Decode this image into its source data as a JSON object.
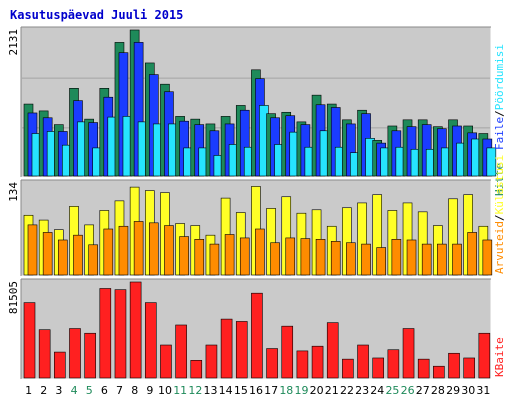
{
  "title": "Kasutuspäevad Juuli 2015",
  "colors": {
    "background": "#ffffff",
    "panel": "#cacaca",
    "title": "#0000cc",
    "grid": "#a3a3a3",
    "hits": "#1e8a5a",
    "files": "#1a3cff",
    "pages": "#26e4ff",
    "visits": "#ffff26",
    "sites": "#ff8c00",
    "kbytes": "#ff2020",
    "weekend_tick": "#1e8a5a",
    "tick": "#000000",
    "sep": "#000000"
  },
  "right_labels": {
    "hits": "Hitte",
    "files": "Faile",
    "pages": "Pöördumisi",
    "visits": "Külastusi",
    "sites": "Arvuteid",
    "kbytes": "KBaite",
    "sep": "/"
  },
  "chart_data": [
    {
      "type": "bar",
      "panel": "top",
      "ymax_label": "2131",
      "ylim": [
        0,
        2131
      ],
      "categories": [
        "1",
        "2",
        "3",
        "4",
        "5",
        "6",
        "7",
        "8",
        "9",
        "10",
        "11",
        "12",
        "13",
        "14",
        "15",
        "16",
        "17",
        "18",
        "19",
        "20",
        "21",
        "22",
        "23",
        "24",
        "25",
        "26",
        "27",
        "28",
        "29",
        "30",
        "31"
      ],
      "weekend_days": [
        "4",
        "5",
        "11",
        "12",
        "18",
        "19",
        "25",
        "26"
      ],
      "series": [
        {
          "name": "Hitte",
          "color_key": "hits",
          "values": [
            1050,
            950,
            750,
            1280,
            830,
            1280,
            1950,
            2131,
            1650,
            1340,
            870,
            830,
            760,
            870,
            1030,
            1550,
            910,
            930,
            790,
            1180,
            1050,
            820,
            960,
            520,
            730,
            820,
            820,
            720,
            820,
            730,
            620
          ]
        },
        {
          "name": "Faile",
          "color_key": "files",
          "values": [
            920,
            850,
            650,
            1100,
            780,
            1150,
            1800,
            1950,
            1480,
            1230,
            800,
            750,
            660,
            760,
            960,
            1420,
            850,
            880,
            750,
            1040,
            1000,
            760,
            910,
            480,
            660,
            720,
            750,
            690,
            730,
            630,
            540
          ]
        },
        {
          "name": "Pöördumisi",
          "color_key": "pages",
          "values": [
            620,
            650,
            450,
            790,
            410,
            860,
            870,
            790,
            760,
            760,
            410,
            410,
            300,
            460,
            420,
            1030,
            460,
            640,
            420,
            660,
            420,
            340,
            550,
            410,
            420,
            390,
            390,
            410,
            480,
            540,
            410
          ]
        }
      ]
    },
    {
      "type": "bar",
      "panel": "middle",
      "ymax_label": "134",
      "ylim": [
        0,
        134
      ],
      "categories": [
        "1",
        "2",
        "3",
        "4",
        "5",
        "6",
        "7",
        "8",
        "9",
        "10",
        "11",
        "12",
        "13",
        "14",
        "15",
        "16",
        "17",
        "18",
        "19",
        "20",
        "21",
        "22",
        "23",
        "24",
        "25",
        "26",
        "27",
        "28",
        "29",
        "30",
        "31"
      ],
      "series": [
        {
          "name": "Külastusi",
          "color_key": "visits",
          "values": [
            87,
            80,
            66,
            100,
            73,
            94,
            108,
            128,
            123,
            120,
            75,
            72,
            58,
            112,
            91,
            129,
            97,
            114,
            90,
            95,
            71,
            98,
            105,
            117,
            94,
            105,
            92,
            72,
            111,
            117,
            71
          ]
        },
        {
          "name": "Arvuteid",
          "color_key": "sites",
          "values": [
            73,
            62,
            51,
            58,
            44,
            67,
            71,
            78,
            76,
            72,
            56,
            52,
            45,
            59,
            54,
            67,
            47,
            54,
            53,
            52,
            49,
            47,
            45,
            40,
            52,
            51,
            45,
            45,
            45,
            62,
            51
          ]
        }
      ]
    },
    {
      "type": "bar",
      "panel": "bottom",
      "ymax_label": "81505",
      "ylim": [
        0,
        81505
      ],
      "categories": [
        "1",
        "2",
        "3",
        "4",
        "5",
        "6",
        "7",
        "8",
        "9",
        "10",
        "11",
        "12",
        "13",
        "14",
        "15",
        "16",
        "17",
        "18",
        "19",
        "20",
        "21",
        "22",
        "23",
        "24",
        "25",
        "26",
        "27",
        "28",
        "29",
        "30",
        "31"
      ],
      "series": [
        {
          "name": "KBaite",
          "color_key": "kbytes",
          "values": [
            64000,
            41000,
            22000,
            42000,
            38000,
            76000,
            75000,
            81505,
            64000,
            28000,
            45000,
            15000,
            28000,
            50000,
            48000,
            72000,
            25000,
            44000,
            23000,
            27000,
            47000,
            16000,
            28000,
            17000,
            24000,
            42000,
            16000,
            10000,
            21000,
            17000,
            38000
          ]
        }
      ]
    }
  ]
}
